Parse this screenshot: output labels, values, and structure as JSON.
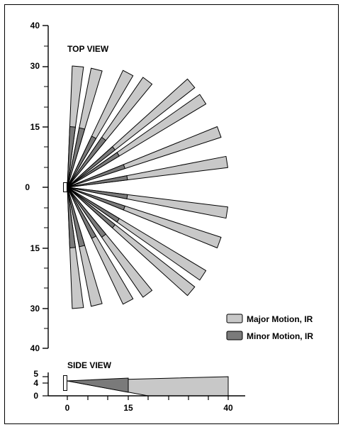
{
  "top_view": {
    "title": "TOP VIEW",
    "y_axis_labels": [
      "40",
      "30",
      "15",
      "0",
      "15",
      "30",
      "40"
    ],
    "y_axis_values": [
      40,
      30,
      15,
      0,
      -15,
      -30,
      -40
    ],
    "beams": [
      {
        "angle": 85,
        "length": 30,
        "minor": 15
      },
      {
        "angle": 76,
        "length": 30,
        "minor": 15
      },
      {
        "angle": 62,
        "length": 32,
        "minor": 14
      },
      {
        "angle": 53,
        "length": 33,
        "minor": 15
      },
      {
        "angle": 40,
        "length": 40,
        "minor": 15
      },
      {
        "angle": 33,
        "length": 40,
        "minor": 15
      },
      {
        "angle": 20,
        "length": 40,
        "minor": 15
      },
      {
        "angle": 9,
        "length": 40,
        "minor": 15
      },
      {
        "angle": -9,
        "length": 40,
        "minor": 15
      },
      {
        "angle": -20,
        "length": 40,
        "minor": 15
      },
      {
        "angle": -33,
        "length": 40,
        "minor": 15
      },
      {
        "angle": -40,
        "length": 40,
        "minor": 15
      },
      {
        "angle": -53,
        "length": 33,
        "minor": 15
      },
      {
        "angle": -62,
        "length": 32,
        "minor": 14
      },
      {
        "angle": -76,
        "length": 30,
        "minor": 15
      },
      {
        "angle": -85,
        "length": 30,
        "minor": 15
      }
    ]
  },
  "legend": {
    "items": [
      {
        "label": "Major Motion, IR",
        "color": "#c8c8c8"
      },
      {
        "label": "Minor Motion, IR",
        "color": "#7a7a7a"
      }
    ]
  },
  "side_view": {
    "title": "SIDE VIEW",
    "y_axis_labels": [
      "5",
      "4",
      "0"
    ],
    "x_axis_labels": [
      "0",
      "15",
      "40"
    ],
    "minor_zone_end": 15,
    "major_zone_end": 40,
    "major_ground_hit": 20,
    "sensor_height": 4,
    "top_height": 5
  },
  "colors": {
    "major": "#c8c8c8",
    "minor": "#7a7a7a",
    "stroke": "#000000"
  }
}
